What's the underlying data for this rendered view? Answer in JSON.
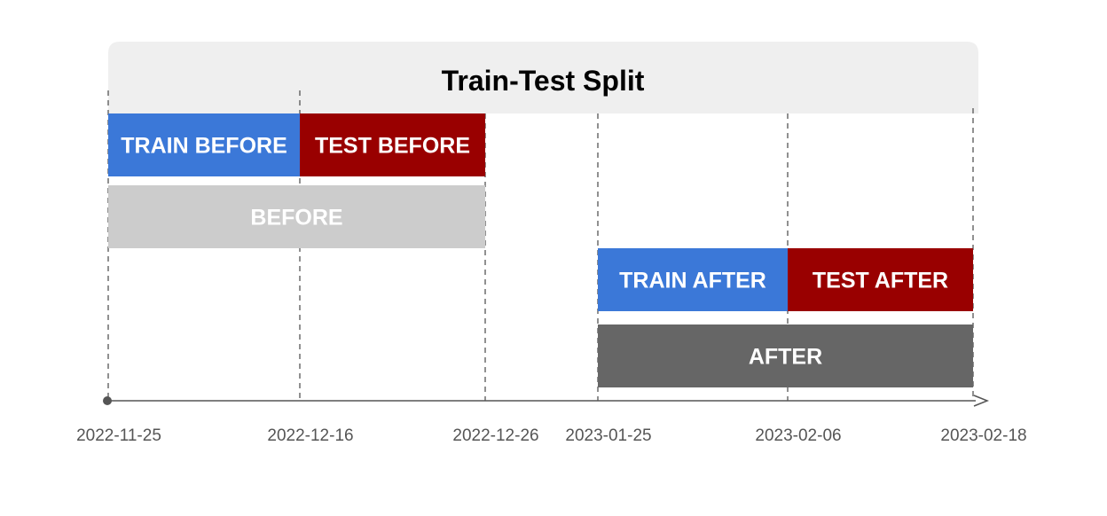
{
  "title": "Train-Test Split",
  "colors": {
    "train": "#3b78d8",
    "test": "#990000",
    "before": "#cccccc",
    "after": "#666666",
    "header": "#efefef",
    "axis": "#555555"
  },
  "timeline": {
    "dates": [
      "2022-11-25",
      "2022-12-16",
      "2022-12-26",
      "2023-01-25",
      "2023-02-06",
      "2023-02-18"
    ]
  },
  "segments": [
    {
      "id": "train-before",
      "label": "TRAIN BEFORE",
      "start": "2022-11-25",
      "end": "2022-12-16",
      "row": 0,
      "color": "#3b78d8"
    },
    {
      "id": "test-before",
      "label": "TEST BEFORE",
      "start": "2022-12-16",
      "end": "2022-12-26",
      "row": 0,
      "color": "#990000"
    },
    {
      "id": "before",
      "label": "BEFORE",
      "start": "2022-11-25",
      "end": "2022-12-26",
      "row": 1,
      "color": "#cccccc"
    },
    {
      "id": "train-after",
      "label": "TRAIN AFTER",
      "start": "2023-01-25",
      "end": "2023-02-06",
      "row": 2,
      "color": "#3b78d8"
    },
    {
      "id": "test-after",
      "label": "TEST AFTER",
      "start": "2023-02-06",
      "end": "2023-02-18",
      "row": 2,
      "color": "#990000"
    },
    {
      "id": "after",
      "label": "AFTER",
      "start": "2023-01-25",
      "end": "2023-02-18",
      "row": 3,
      "color": "#666666"
    }
  ]
}
